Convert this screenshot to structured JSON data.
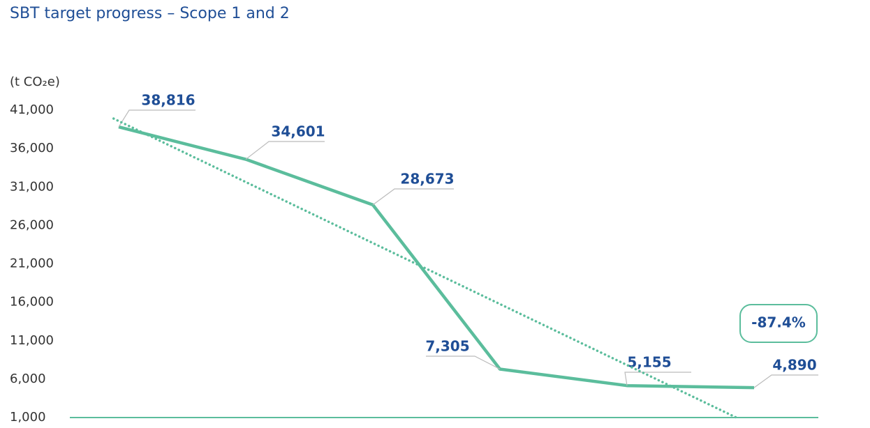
{
  "chart_data": {
    "type": "line",
    "title": "SBT target progress – Scope 1 and 2",
    "y_label": "(t CO₂e)",
    "categories": [
      null,
      null,
      null,
      null,
      null,
      null
    ],
    "series": [
      {
        "color": "#5bbd9c",
        "values": [
          38816,
          34601,
          28673,
          7305,
          5155,
          4890
        ],
        "value_labels": [
          "38,816",
          "34,601",
          "28,673",
          "7,305",
          "5,155",
          "4,890"
        ]
      },
      {
        "color": "#5bbd9c",
        "style": "dotted",
        "x": [
          -0.04,
          4.86
        ],
        "values": [
          39900,
          1000
        ]
      }
    ],
    "annotation": "-87.4%",
    "ylim": [
      1000,
      41000
    ],
    "yticks": [
      {
        "value": 1000,
        "label": "1,000"
      },
      {
        "value": 6000,
        "label": "6,000"
      },
      {
        "value": 11000,
        "label": "11,000"
      },
      {
        "value": 16000,
        "label": "16,000"
      },
      {
        "value": 21000,
        "label": "21,000"
      },
      {
        "value": 26000,
        "label": "26,000"
      },
      {
        "value": 31000,
        "label": "31,000"
      },
      {
        "value": 36000,
        "label": "36,000"
      },
      {
        "value": 41000,
        "label": "41,000"
      }
    ]
  }
}
